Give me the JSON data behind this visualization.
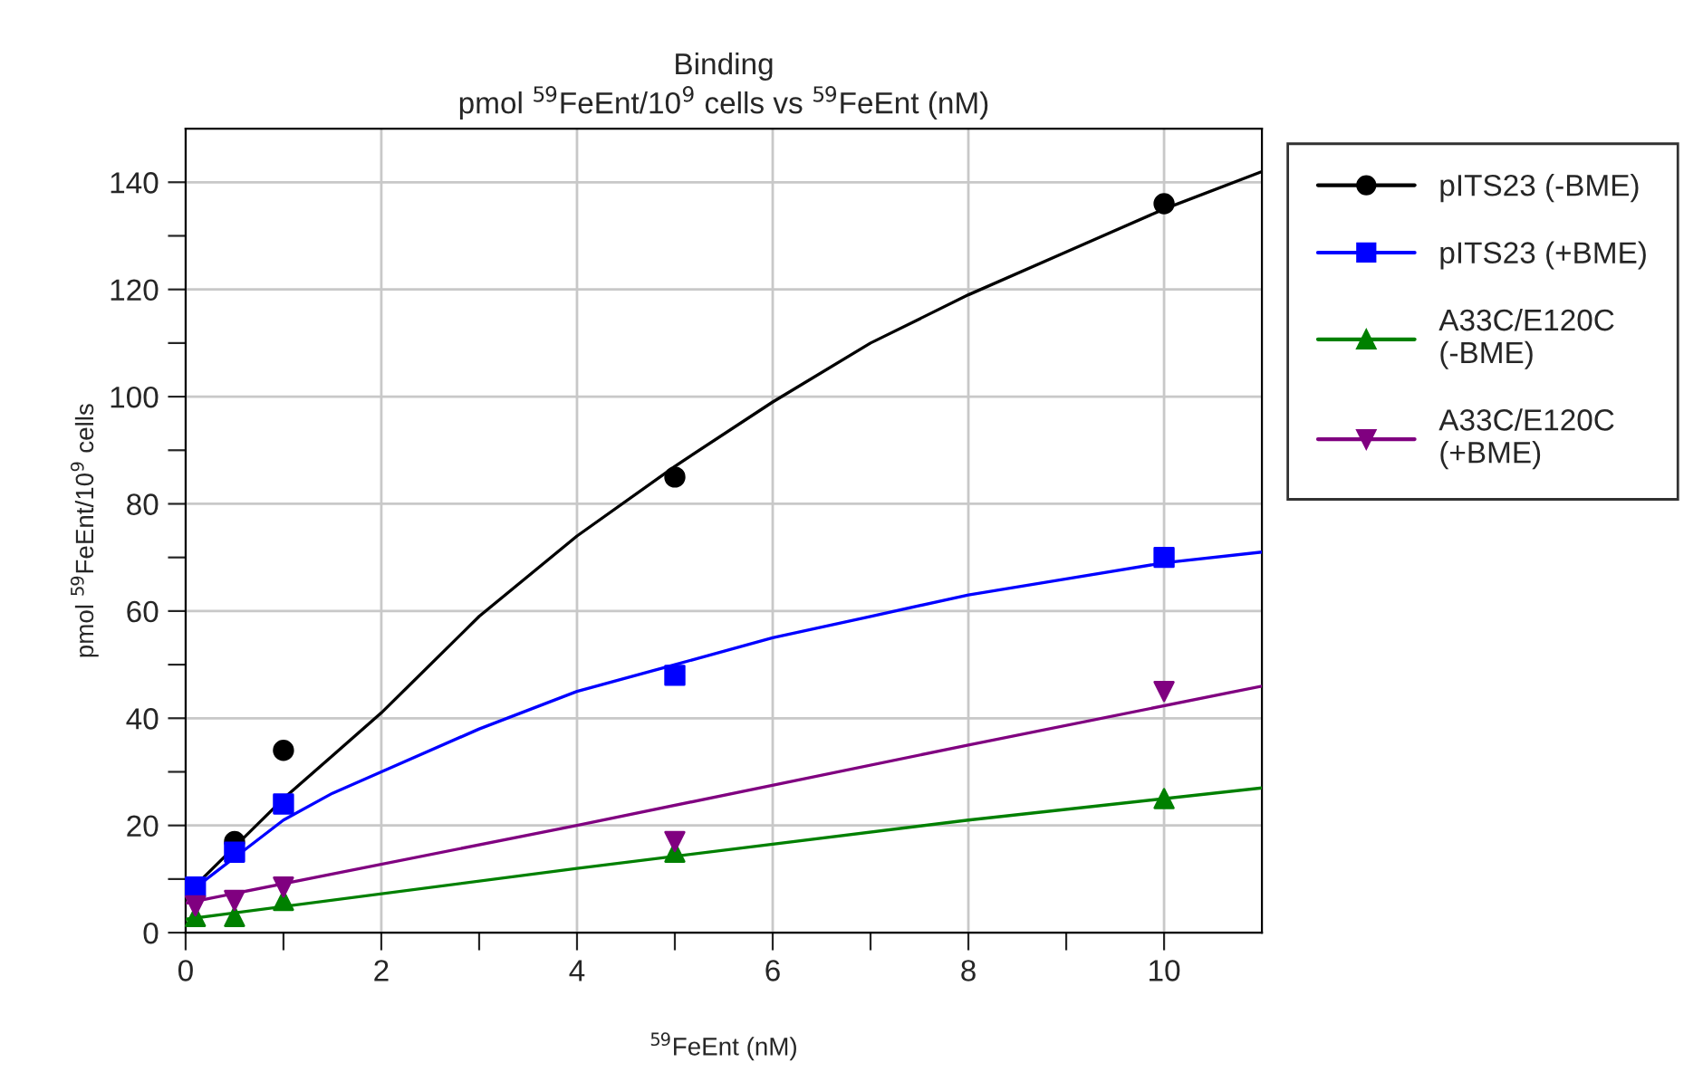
{
  "chart_data": {
    "type": "scatter",
    "title": "Binding\npmol $^{59}$FeEnt/10$^{9}$ cells vs $^{59}$FeEnt (nM)",
    "xlabel": "$^{59}$FeEnt (nM)",
    "ylabel": "pmol $^{59}$FeEnt/10$^{9}$ cells",
    "x": [
      0.1,
      0.5,
      1,
      5,
      10
    ],
    "series": [
      {
        "name": "pITS23 (-BME)",
        "color": "#000000",
        "marker": "circle",
        "values": [
          null,
          17,
          34,
          85,
          136
        ]
      },
      {
        "name": "pITS23 (+BME)",
        "color": "#0000ff",
        "marker": "square",
        "values": [
          8.5,
          15,
          24,
          48,
          70
        ]
      },
      {
        "name": "A33C/E120C\n(-BME)",
        "color": "#008000",
        "marker": "triangle",
        "values": [
          3,
          3,
          6,
          15,
          25
        ]
      },
      {
        "name": "A33C/E120C\n(+BME)",
        "color": "#800080",
        "marker": "triangle_down",
        "values": [
          5,
          6,
          8.5,
          17,
          45
        ]
      },
      {
        "type": "line",
        "color": "#000000",
        "x": [
          0,
          0.5,
          1,
          1.5,
          2,
          3,
          4,
          5,
          6,
          7,
          8,
          9,
          10,
          11
        ],
        "values": [
          7,
          16,
          25,
          33,
          41,
          59,
          74,
          87,
          99,
          110,
          119,
          127,
          135,
          142
        ]
      },
      {
        "type": "line",
        "color": "#0000ff",
        "x": [
          0,
          0.5,
          1,
          1.5,
          2,
          3,
          4,
          5,
          6,
          7,
          8,
          9,
          10,
          11
        ],
        "values": [
          7,
          14,
          21,
          26,
          30,
          38,
          45,
          50,
          55,
          59,
          63,
          66,
          69,
          71
        ]
      },
      {
        "type": "line",
        "color": "#008000",
        "x": [
          0,
          4,
          8,
          11
        ],
        "values": [
          2.5,
          12,
          21,
          27
        ]
      },
      {
        "type": "line",
        "color": "#800080",
        "x": [
          0,
          4,
          8,
          11
        ],
        "values": [
          5.5,
          20,
          35,
          46
        ]
      }
    ],
    "xlim": [
      0,
      11
    ],
    "ylim": [
      0,
      150
    ],
    "xticks": [
      0,
      {
        "value": 1,
        "label": null
      },
      2,
      {
        "value": 3,
        "label": null
      },
      4,
      {
        "value": 5,
        "label": null
      },
      6,
      {
        "value": 7,
        "label": null
      },
      8,
      {
        "value": 9,
        "label": null
      },
      10
    ],
    "yticks": [
      0,
      {
        "value": 10,
        "label": null
      },
      20,
      {
        "value": 30,
        "label": null
      },
      40,
      {
        "value": 50,
        "label": null
      },
      60,
      {
        "value": 70,
        "label": null
      },
      80,
      {
        "value": 90,
        "label": null
      },
      100,
      {
        "value": 110,
        "label": null
      },
      120,
      {
        "value": 130,
        "label": null
      },
      140
    ],
    "grid": true,
    "legend": "right",
    "line_style": "solid"
  }
}
